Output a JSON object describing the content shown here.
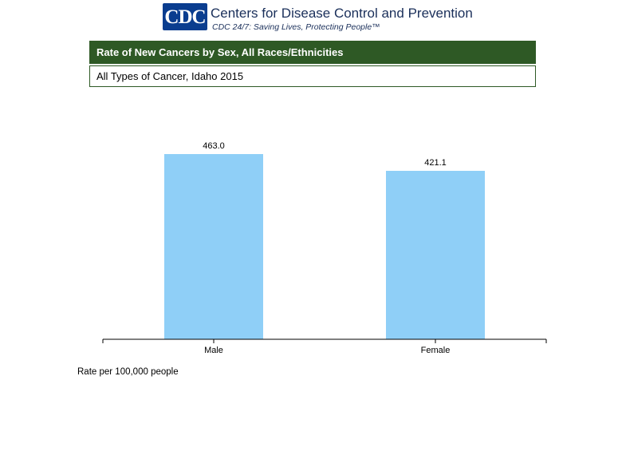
{
  "header": {
    "logo_text": "CDC",
    "org_name": "Centers for Disease Control and Prevention",
    "tagline": "CDC 24/7: Saving Lives, Protecting People™"
  },
  "chart_data": {
    "type": "bar",
    "title": "Rate of New Cancers by Sex, All Races/Ethnicities",
    "subtitle": "All Types of Cancer, Idaho 2015",
    "categories": [
      "Male",
      "Female"
    ],
    "values": [
      463.0,
      421.1
    ],
    "value_labels": [
      "463.0",
      "421.1"
    ],
    "ylim": [
      0,
      500
    ],
    "bar_color": "#8fcff7",
    "title_bar_color": "#2e5925",
    "grid": false,
    "footnote": "Rate per 100,000 people"
  }
}
